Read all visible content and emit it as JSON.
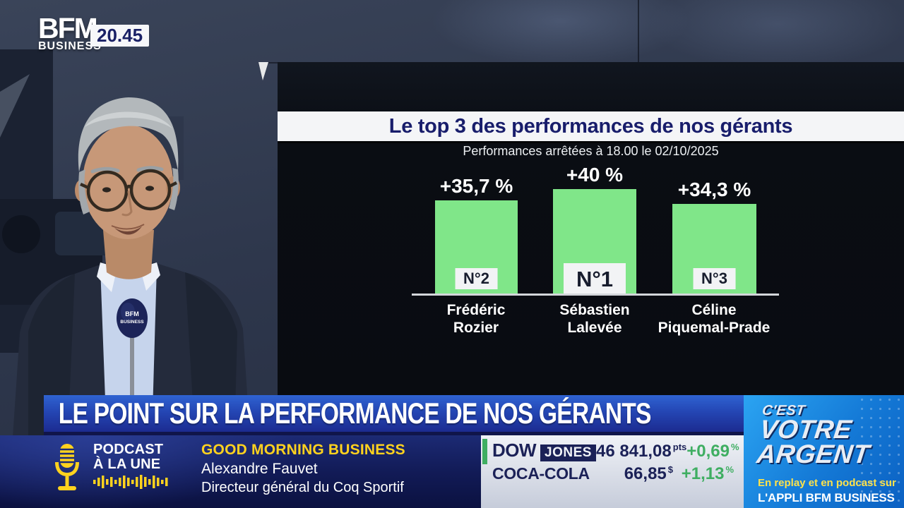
{
  "channel": {
    "logo_main": "BFM",
    "logo_sub": "BUSINESS",
    "time": "20.45"
  },
  "chart_data": {
    "type": "bar",
    "title": "Le top 3 des performances de nos gérants",
    "subtitle": "Performances arrêtées à 18.00 le 02/10/2025",
    "categories": [
      "Frédéric Rozier",
      "Sébastien Lalevée",
      "Céline Piquemal-Prade"
    ],
    "values": [
      35.7,
      40,
      34.3
    ],
    "ylim": [
      0,
      44
    ],
    "unit": "%",
    "bar_color": "#80e689",
    "bars": [
      {
        "value_label": "+35,7 %",
        "rank": "N°2",
        "name_line1": "Frédéric",
        "name_line2": "Rozier"
      },
      {
        "value_label": "+40 %",
        "rank": "N°1",
        "name_line1": "Sébastien",
        "name_line2": "Lalevée"
      },
      {
        "value_label": "+34,3 %",
        "rank": "N°3",
        "name_line1": "Céline",
        "name_line2": "Piquemal-Prade"
      }
    ]
  },
  "banner": {
    "headline": "LE POINT SUR LA PERFORMANCE DE NOS GÉRANTS"
  },
  "podcast": {
    "kicker_line1": "PODCAST",
    "kicker_line2": "À LA UNE",
    "show": "GOOD MORNING BUSINESS",
    "guest": "Alexandre Fauvet",
    "guest_title": "Directeur général du Coq Sportif"
  },
  "ticker": {
    "up_color": "#3fae62",
    "rows": [
      {
        "name": "DOW",
        "badge": "JONES",
        "value": "46 841,08",
        "unit": "pts",
        "change": "+0,69",
        "change_unit": "%"
      },
      {
        "name": "COCA-COLA",
        "badge": "",
        "value": "66,85",
        "unit": "$",
        "change": "+1,13",
        "change_unit": "%"
      }
    ]
  },
  "program": {
    "line1": "C'EST",
    "line2": "VOTRE",
    "line3": "ARGENT",
    "replay_line": "En replay et en podcast sur",
    "app_line": "L'APPLI BFM BUSINESS"
  },
  "mic_label": {
    "line1": "BFM",
    "line2": "BUSINESS"
  }
}
